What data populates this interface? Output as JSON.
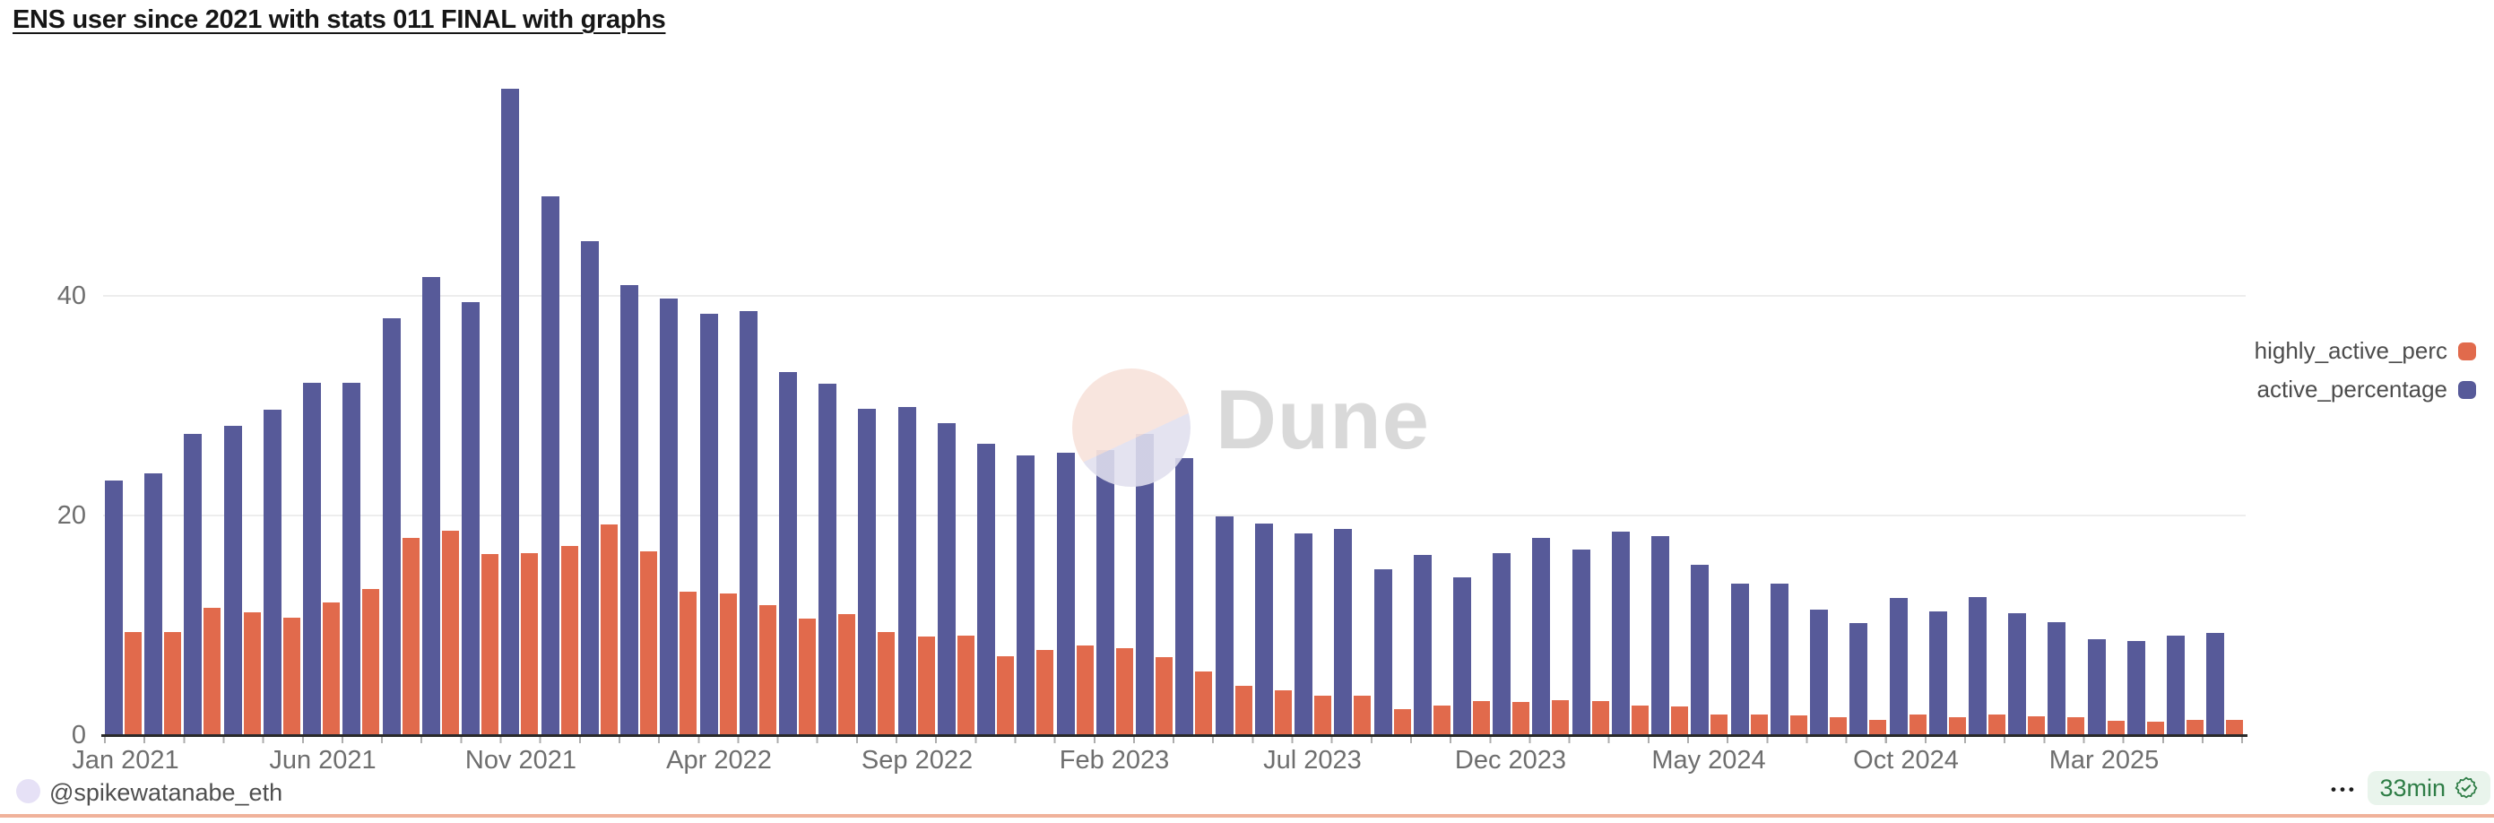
{
  "header": {
    "title": "ENS user since 2021 with stats 011 FINAL with graphs"
  },
  "watermark": {
    "text": "Dune",
    "circle_color_top": "#f8e3dc",
    "circle_color_bottom": "#e0dfee",
    "text_color": "#d9d9d9"
  },
  "legend": {
    "items": [
      {
        "label": "highly_active_perc",
        "color": "#e16a4c"
      },
      {
        "label": "active_percentage",
        "color": "#575a99"
      }
    ]
  },
  "footer": {
    "author_handle": "@spikewatanabe_eth",
    "more_options_label": "•••",
    "refresh_badge": {
      "text": "33min",
      "text_color": "#2e7d46",
      "background_color": "#e9f4ec"
    },
    "divider_color": "#f0b29b"
  },
  "chart_data": {
    "type": "bar",
    "title": "ENS user since 2021 with stats 011 FINAL with graphs",
    "xlabel": "",
    "ylabel": "",
    "ylim": [
      0,
      63
    ],
    "grid": "horizontal",
    "legend_position": "right",
    "y_ticks": [
      "0",
      "20",
      "40"
    ],
    "x_tick_labels": [
      "Jan 2021",
      "Jun 2021",
      "Nov 2021",
      "Apr 2022",
      "Sep 2022",
      "Feb 2023",
      "Jul 2023",
      "Dec 2023",
      "May 2024",
      "Oct 2024",
      "Mar 2025"
    ],
    "categories": [
      "Jan 2021",
      "Feb 2021",
      "Mar 2021",
      "Apr 2021",
      "May 2021",
      "Jun 2021",
      "Jul 2021",
      "Aug 2021",
      "Sep 2021",
      "Oct 2021",
      "Nov 2021",
      "Dec 2021",
      "Jan 2022",
      "Feb 2022",
      "Mar 2022",
      "Apr 2022",
      "May 2022",
      "Jun 2022",
      "Jul 2022",
      "Aug 2022",
      "Sep 2022",
      "Oct 2022",
      "Nov 2022",
      "Dec 2022",
      "Jan 2023",
      "Feb 2023",
      "Mar 2023",
      "Apr 2023",
      "May 2023",
      "Jun 2023",
      "Jul 2023",
      "Aug 2023",
      "Sep 2023",
      "Oct 2023",
      "Nov 2023",
      "Dec 2023",
      "Jan 2024",
      "Feb 2024",
      "Mar 2024",
      "Apr 2024",
      "May 2024",
      "Jun 2024",
      "Jul 2024",
      "Aug 2024",
      "Sep 2024",
      "Oct 2024",
      "Nov 2024",
      "Dec 2024",
      "Jan 2025",
      "Feb 2025",
      "Mar 2025",
      "Apr 2025",
      "May 2025",
      "Jun 2025"
    ],
    "series": [
      {
        "name": "active_percentage",
        "color": "#575a99",
        "values": [
          23.2,
          23.8,
          27.4,
          28.2,
          29.6,
          32.1,
          32.1,
          38.0,
          41.7,
          39.4,
          58.9,
          49.1,
          45.0,
          41.0,
          39.8,
          38.4,
          38.6,
          33.1,
          32.0,
          29.7,
          29.9,
          28.4,
          26.5,
          25.5,
          25.7,
          26.0,
          27.4,
          25.2,
          19.9,
          19.3,
          18.4,
          18.8,
          15.1,
          16.4,
          14.4,
          16.6,
          18.0,
          16.9,
          18.5,
          18.1,
          15.5,
          13.8,
          13.8,
          11.4,
          10.2,
          12.5,
          11.3,
          12.6,
          11.1,
          10.3,
          8.7,
          8.6,
          9.1,
          9.3
        ]
      },
      {
        "name": "highly_active_perc",
        "color": "#e16a4c",
        "values": [
          9.4,
          9.4,
          11.6,
          11.2,
          10.7,
          12.1,
          13.3,
          18.0,
          18.6,
          16.5,
          16.6,
          17.2,
          19.2,
          16.7,
          13.1,
          12.9,
          11.8,
          10.6,
          11.0,
          9.4,
          9.0,
          9.1,
          7.2,
          7.8,
          8.2,
          7.9,
          7.1,
          5.8,
          4.5,
          4.1,
          3.6,
          3.6,
          2.4,
          2.7,
          3.1,
          3.0,
          3.2,
          3.1,
          2.7,
          2.6,
          1.9,
          1.9,
          1.8,
          1.6,
          1.4,
          1.9,
          1.6,
          1.9,
          1.7,
          1.6,
          1.3,
          1.2,
          1.4,
          1.4
        ]
      }
    ]
  }
}
